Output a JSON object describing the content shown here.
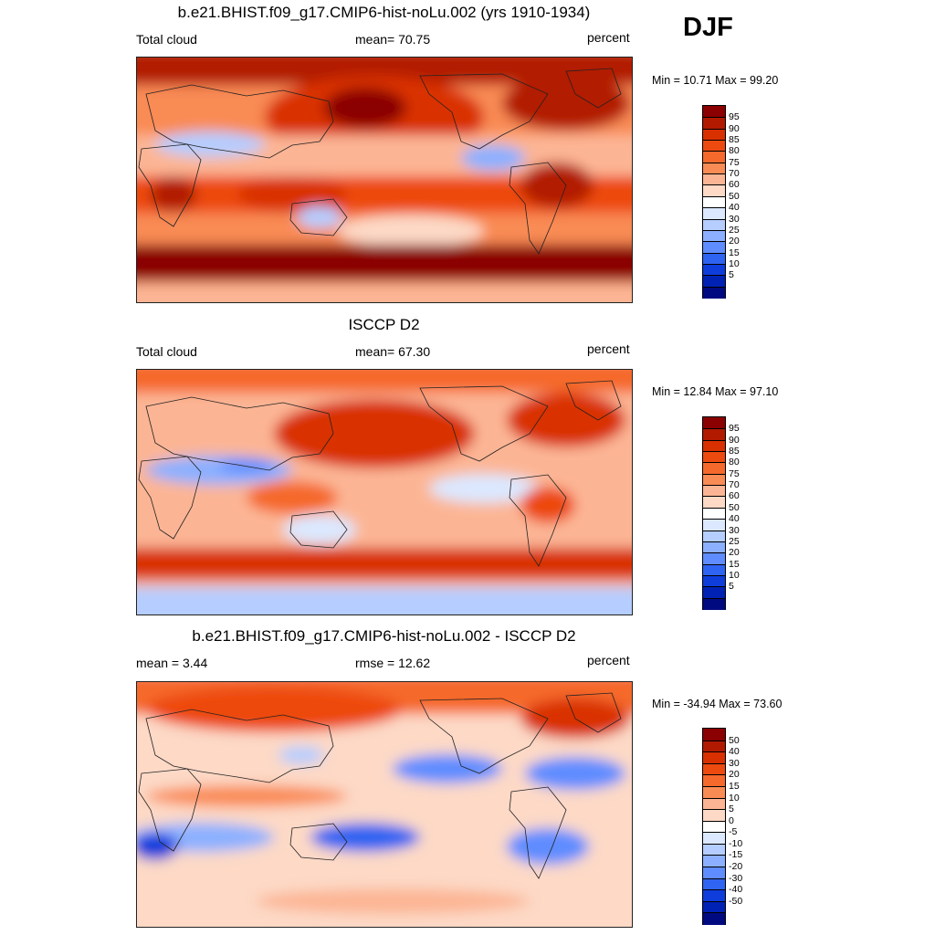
{
  "season": "DJF",
  "panels": [
    {
      "id": "model",
      "title": "b.e21.BHIST.f09_g17.CMIP6-hist-noLu.002 (yrs 1910-1934)",
      "left_label": "Total cloud",
      "center_label": "mean=  70.75",
      "right_label": "percent",
      "minmax": "Min =  10.71 Max =  99.20",
      "colorbar_labels": [
        "95",
        "90",
        "85",
        "80",
        "75",
        "70",
        "60",
        "50",
        "40",
        "30",
        "25",
        "20",
        "15",
        "10",
        "5"
      ]
    },
    {
      "id": "obs",
      "title": "ISCCP D2",
      "left_label": "Total cloud",
      "center_label": "mean=  67.30",
      "right_label": "percent",
      "minmax": "Min =  12.84 Max =  97.10",
      "colorbar_labels": [
        "95",
        "90",
        "85",
        "80",
        "75",
        "70",
        "60",
        "50",
        "40",
        "30",
        "25",
        "20",
        "15",
        "10",
        "5"
      ]
    },
    {
      "id": "diff",
      "title": "b.e21.BHIST.f09_g17.CMIP6-hist-noLu.002 - ISCCP D2",
      "left_label": "mean =   3.44",
      "center_label": "rmse =   12.62",
      "right_label": "percent",
      "minmax": "Min = -34.94 Max =  73.60",
      "colorbar_labels": [
        "50",
        "40",
        "30",
        "20",
        "15",
        "10",
        "5",
        "0",
        "-5",
        "-10",
        "-15",
        "-20",
        "-30",
        "-40",
        "-50"
      ]
    }
  ],
  "colors": {
    "scale": [
      "#8b0000",
      "#b21a00",
      "#d93000",
      "#ed4a10",
      "#f5692c",
      "#f98b55",
      "#fcb594",
      "#fdd9c6",
      "#ffffff",
      "#dbe8ff",
      "#b5cdff",
      "#8cb0ff",
      "#5f8cff",
      "#2f63f2",
      "#0f3ddc",
      "#0022b4",
      "#000a80"
    ]
  }
}
